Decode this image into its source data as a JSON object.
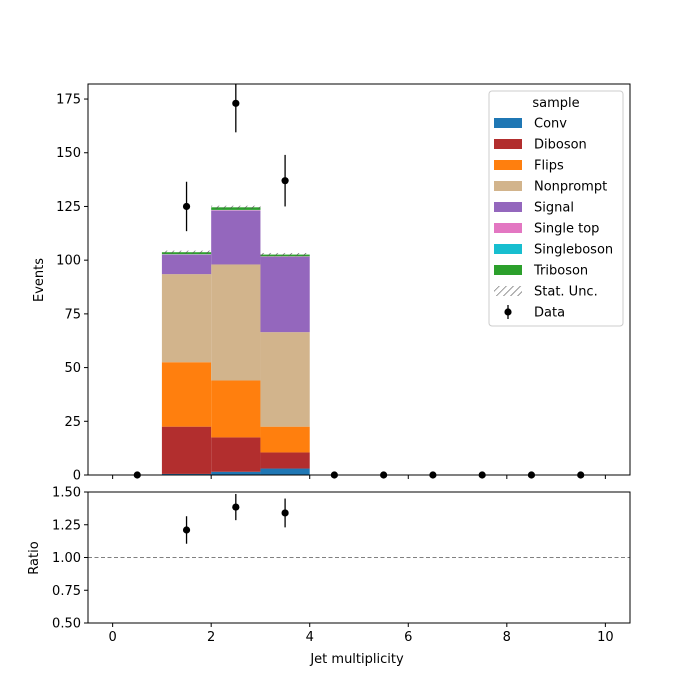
{
  "chart_data": [
    {
      "type": "bar",
      "stacked": true,
      "ylabel": "Events",
      "ylim": [
        0,
        182
      ],
      "xlim": [
        -0.5,
        10.5
      ],
      "yticks": [
        0,
        25,
        50,
        75,
        100,
        125,
        150,
        175
      ],
      "ytick_labels": [
        "0",
        "25",
        "50",
        "75",
        "100",
        "125",
        "150",
        "175"
      ],
      "bin_edges": [
        0,
        1,
        2,
        3,
        4,
        5,
        6,
        7,
        8,
        9,
        10
      ],
      "series": [
        {
          "name": "Conv",
          "color": "#1f77b4",
          "values": [
            0,
            0.5,
            1.5,
            3,
            0,
            0,
            0,
            0,
            0,
            0
          ]
        },
        {
          "name": "Diboson",
          "color": "#b22e2e",
          "values": [
            0,
            22,
            16,
            7.5,
            0,
            0,
            0,
            0,
            0,
            0
          ]
        },
        {
          "name": "Flips",
          "color": "#ff7f0e",
          "values": [
            0,
            30,
            26.5,
            12,
            0,
            0,
            0,
            0,
            0,
            0
          ]
        },
        {
          "name": "Nonprompt",
          "color": "#d2b48c",
          "values": [
            0,
            41,
            54,
            44,
            0,
            0,
            0,
            0,
            0,
            0
          ]
        },
        {
          "name": "Signal",
          "color": "#9467bd",
          "values": [
            0,
            9,
            25,
            35,
            0,
            0,
            0,
            0,
            0,
            0
          ]
        },
        {
          "name": "Single top",
          "color": "#e377c2",
          "values": [
            0,
            0.2,
            0.3,
            0.2,
            0,
            0,
            0,
            0,
            0,
            0
          ]
        },
        {
          "name": "Singleboson",
          "color": "#17becf",
          "values": [
            0,
            0.1,
            0.1,
            0.1,
            0,
            0,
            0,
            0,
            0,
            0
          ]
        },
        {
          "name": "Triboson",
          "color": "#2ca02c",
          "values": [
            0,
            0.9,
            1.2,
            0.8,
            0,
            0,
            0,
            0,
            0,
            0
          ]
        }
      ],
      "stat_unc": {
        "name": "Stat. Unc.",
        "values": [
          0,
          1.5,
          1.5,
          1.5,
          0,
          0,
          0,
          0,
          0,
          0
        ]
      },
      "data": {
        "name": "Data",
        "x": [
          0.5,
          1.5,
          2.5,
          3.5,
          4.5,
          5.5,
          6.5,
          7.5,
          8.5,
          9.5
        ],
        "y": [
          0,
          125,
          173,
          137,
          0,
          0,
          0,
          0,
          0,
          0
        ],
        "yerr": [
          0,
          11.5,
          13.5,
          12,
          0,
          0,
          0,
          0,
          0,
          0
        ]
      },
      "legend": {
        "title": "sample",
        "location": "top-right"
      }
    },
    {
      "type": "scatter",
      "xlabel": "Jet multiplicity",
      "ylabel": "Ratio",
      "xlim": [
        -0.5,
        10.5
      ],
      "ylim": [
        0.5,
        1.5
      ],
      "xticks": [
        0,
        2,
        4,
        6,
        8,
        10
      ],
      "xtick_labels": [
        "0",
        "2",
        "4",
        "6",
        "8",
        "10"
      ],
      "yticks": [
        0.5,
        0.75,
        1.0,
        1.25,
        1.5
      ],
      "ytick_labels": [
        "0.50",
        "0.75",
        "1.00",
        "1.25",
        "1.50"
      ],
      "reference_line": 1.0,
      "points": {
        "x": [
          1.5,
          2.5,
          3.5
        ],
        "y": [
          1.21,
          1.385,
          1.34
        ],
        "yerr": [
          0.105,
          0.1,
          0.11
        ]
      }
    }
  ]
}
